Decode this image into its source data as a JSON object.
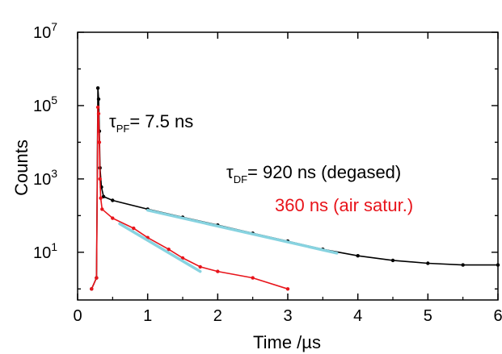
{
  "chart_data": {
    "type": "scatter",
    "xlabel": "Time /µs",
    "ylabel": "Counts",
    "xlim": [
      0,
      6
    ],
    "ylim": [
      0.5,
      10000000
    ],
    "yscale": "log",
    "grid": false,
    "x_ticks": [
      "0",
      "1",
      "2",
      "3",
      "4",
      "5",
      "6"
    ],
    "x_tick_values": [
      0,
      1,
      2,
      3,
      4,
      5,
      6
    ],
    "y_ticks": [
      {
        "base": "10",
        "exp": "1",
        "value": 10
      },
      {
        "base": "10",
        "exp": "3",
        "value": 1000
      },
      {
        "base": "10",
        "exp": "5",
        "value": 100000
      },
      {
        "base": "10",
        "exp": "7",
        "value": 10000000
      }
    ],
    "colors": {
      "degased": "#000000",
      "air": "#e8141b",
      "fit": "#87d3e0"
    },
    "series": [
      {
        "color": "#000000",
        "points": [
          [
            0.2,
            1
          ],
          [
            0.27,
            2
          ],
          [
            0.29,
            300000
          ],
          [
            0.3,
            150000
          ],
          [
            0.31,
            20000
          ],
          [
            0.32,
            2000
          ],
          [
            0.34,
            600
          ],
          [
            0.37,
            330
          ],
          [
            0.5,
            260
          ],
          [
            1.0,
            150
          ],
          [
            1.5,
            90
          ],
          [
            2.0,
            55
          ],
          [
            2.5,
            33
          ],
          [
            3.0,
            20
          ],
          [
            3.5,
            12
          ],
          [
            4.0,
            8
          ],
          [
            4.5,
            6
          ],
          [
            5.0,
            5
          ],
          [
            5.5,
            4.5
          ],
          [
            6.0,
            4.5
          ]
        ]
      },
      {
        "color": "#e8141b",
        "points": [
          [
            0.2,
            1
          ],
          [
            0.27,
            2
          ],
          [
            0.29,
            90000
          ],
          [
            0.3,
            60000
          ],
          [
            0.31,
            10000
          ],
          [
            0.32,
            1000
          ],
          [
            0.33,
            300
          ],
          [
            0.35,
            150
          ],
          [
            0.5,
            85
          ],
          [
            0.8,
            45
          ],
          [
            1.0,
            25
          ],
          [
            1.3,
            12
          ],
          [
            1.5,
            7
          ],
          [
            1.75,
            4
          ],
          [
            2.0,
            3
          ],
          [
            2.5,
            2
          ],
          [
            3.0,
            1
          ]
        ]
      }
    ],
    "fits": [
      {
        "color": "#87d3e0",
        "x": [
          1.0,
          3.7
        ],
        "y": [
          140,
          9.5
        ]
      },
      {
        "color": "#87d3e0",
        "x": [
          0.6,
          1.75
        ],
        "y": [
          60,
          3
        ]
      }
    ],
    "annotations": [
      {
        "parts": [
          {
            "text": "τ"
          },
          {
            "text": "PF",
            "sub": true
          },
          {
            "text": "= 7.5 ns"
          }
        ],
        "color": "#000000"
      },
      {
        "parts": [
          {
            "text": "τ"
          },
          {
            "text": "DF",
            "sub": true
          },
          {
            "text": "= 920 ns (degased)"
          }
        ],
        "color": "#000000"
      },
      {
        "parts": [
          {
            "text": "360 ns (air satur.)"
          }
        ],
        "color": "#e8141b"
      }
    ]
  }
}
